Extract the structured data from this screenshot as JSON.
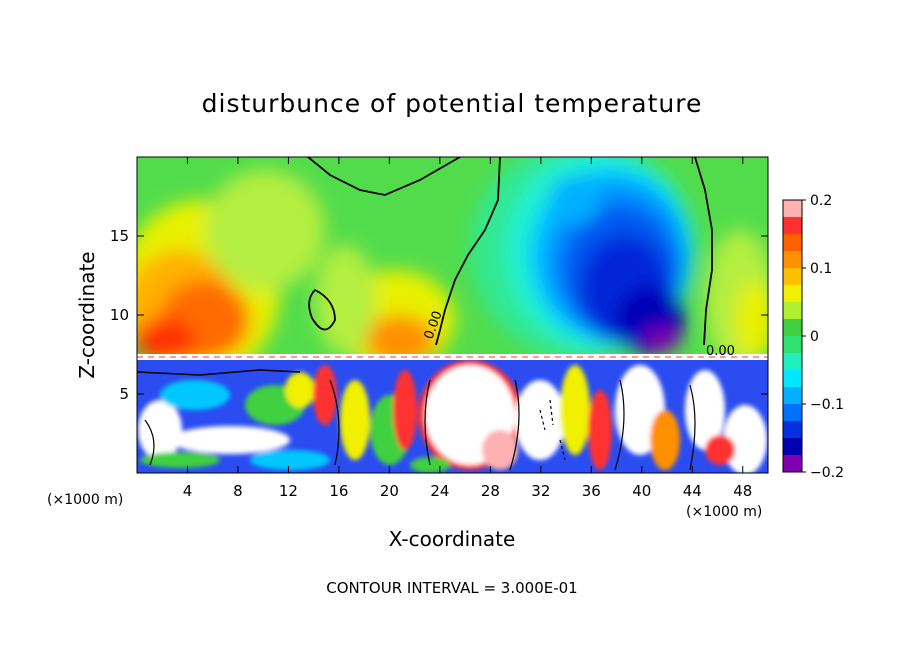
{
  "chart_data": {
    "type": "heatmap",
    "title": "disturbunce of potential temperature",
    "xlabel": "X-coordinate",
    "ylabel": "Z-coordinate",
    "x_unit": "(×1000 m)",
    "x_unit_right": "(×1000 m)",
    "xlim": [
      0,
      50
    ],
    "ylim": [
      0,
      20
    ],
    "x_ticks": [
      4,
      8,
      12,
      16,
      20,
      24,
      28,
      32,
      36,
      40,
      44,
      48
    ],
    "y_ticks": [
      5,
      10,
      15
    ],
    "colorbar": {
      "range": [
        -0.2,
        0.2
      ],
      "tick_values": [
        0.2,
        0.1,
        0,
        -0.1,
        -0.2
      ],
      "tick_labels": [
        "0.2",
        "0.1",
        "0",
        "−0.1",
        "−0.2"
      ],
      "colors": [
        "#ffb0b0",
        "#ff3030",
        "#ff6000",
        "#ff9000",
        "#ffc000",
        "#f0f000",
        "#b0f030",
        "#40d040",
        "#30e070",
        "#20f0c0",
        "#00e8ff",
        "#00b0ff",
        "#0070ff",
        "#0030e0",
        "#0000b0",
        "#8000b0"
      ]
    },
    "contour_labels": [
      "0.00",
      "0.00"
    ],
    "contour_interval": "CONTOUR INTERVAL = 3.000E-01"
  }
}
